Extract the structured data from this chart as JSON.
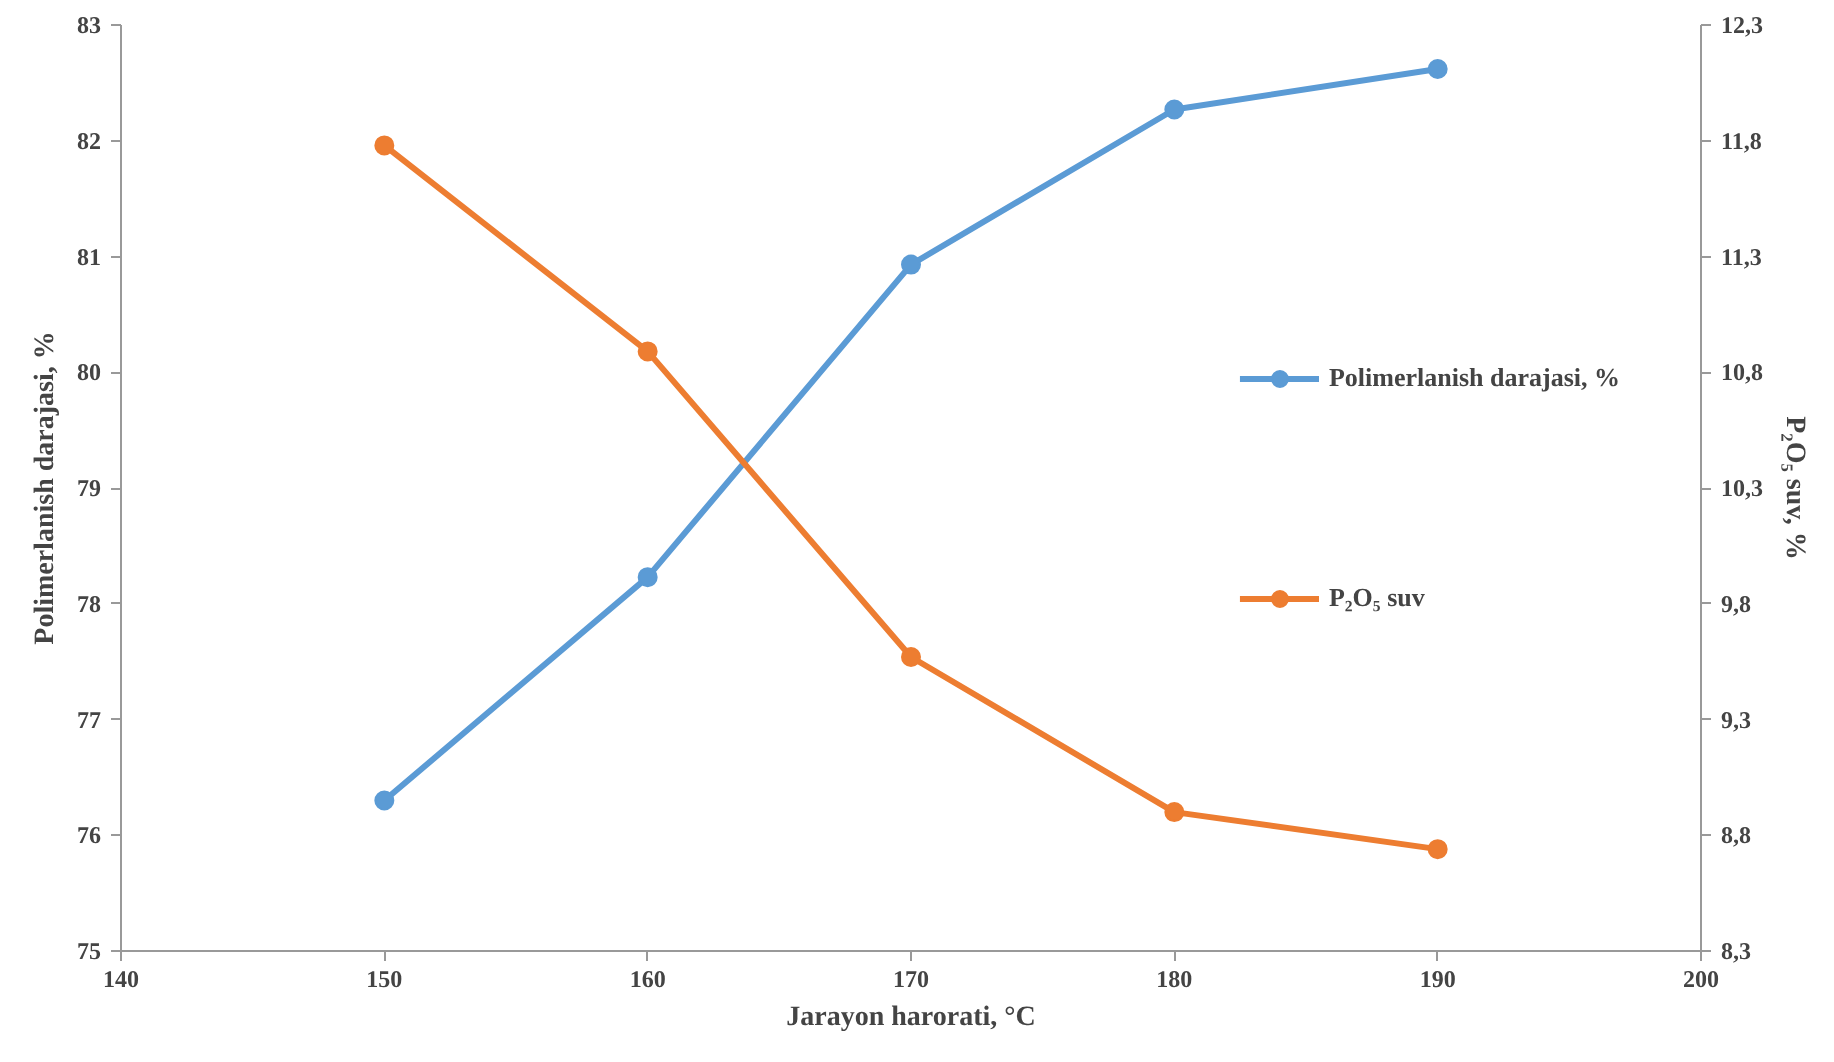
{
  "chart_data": {
    "type": "line",
    "xlabel": "Jarayon harorati, °C",
    "ylabel": "Polimerlanish darajasi, %",
    "y2label": "P₂O₅ suv, %",
    "x": [
      150,
      160,
      170,
      180,
      190
    ],
    "series": [
      {
        "name": "Polimerlanish darajasi, %",
        "color": "#5b9bd5",
        "values": [
          76.3,
          78.23,
          80.93,
          82.27,
          82.62
        ]
      },
      {
        "name": "P₂O₅ suv",
        "color": "#ed7d31",
        "values": [
          11.78,
          10.89,
          9.57,
          8.9,
          8.74
        ],
        "axis": "y2"
      }
    ],
    "xlim": [
      140,
      200
    ],
    "xticks": [
      140,
      150,
      160,
      170,
      180,
      190,
      200
    ],
    "ylim": [
      75,
      83
    ],
    "yticks": [
      75,
      76,
      77,
      78,
      79,
      80,
      81,
      82,
      83
    ],
    "y2lim": [
      8.3,
      12.3
    ],
    "y2ticks": [
      {
        "value": 8.3,
        "label": "8,3"
      },
      {
        "value": 8.8,
        "label": "8,8"
      },
      {
        "value": 9.3,
        "label": "9,3"
      },
      {
        "value": 9.8,
        "label": "9,8"
      },
      {
        "value": 10.3,
        "label": "10,3"
      },
      {
        "value": 10.8,
        "label": "10,8"
      },
      {
        "value": 11.3,
        "label": "11,3"
      },
      {
        "value": 11.8,
        "label": "11,8"
      },
      {
        "value": 12.3,
        "label": "12,3"
      }
    ],
    "marker": "circle",
    "grid": false,
    "legend": "right"
  }
}
